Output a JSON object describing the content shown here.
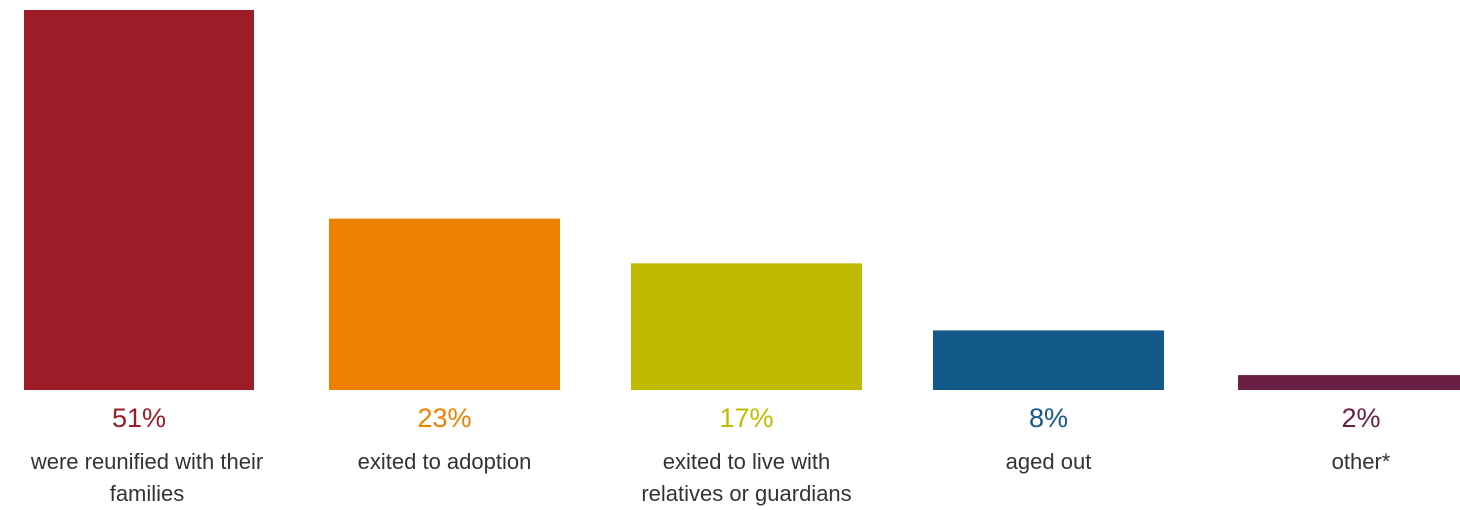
{
  "chart_data": {
    "type": "bar",
    "title": "",
    "xlabel": "",
    "ylabel": "",
    "ylim": [
      0,
      51
    ],
    "grid": false,
    "legend": "none",
    "unit": "%",
    "categories": [
      [
        "were reunified with their",
        "families"
      ],
      [
        "exited to adoption"
      ],
      [
        "exited to live with",
        "relatives or guardians"
      ],
      [
        "aged out"
      ],
      [
        "other*"
      ]
    ],
    "values": [
      51,
      23,
      17,
      8,
      2
    ],
    "value_labels": [
      "51%",
      "23%",
      "17%",
      "8%",
      "2%"
    ],
    "colors": [
      "#9a1d27",
      "#ee8200",
      "#c1bb00",
      "#135a8a",
      "#6a1f44"
    ]
  }
}
